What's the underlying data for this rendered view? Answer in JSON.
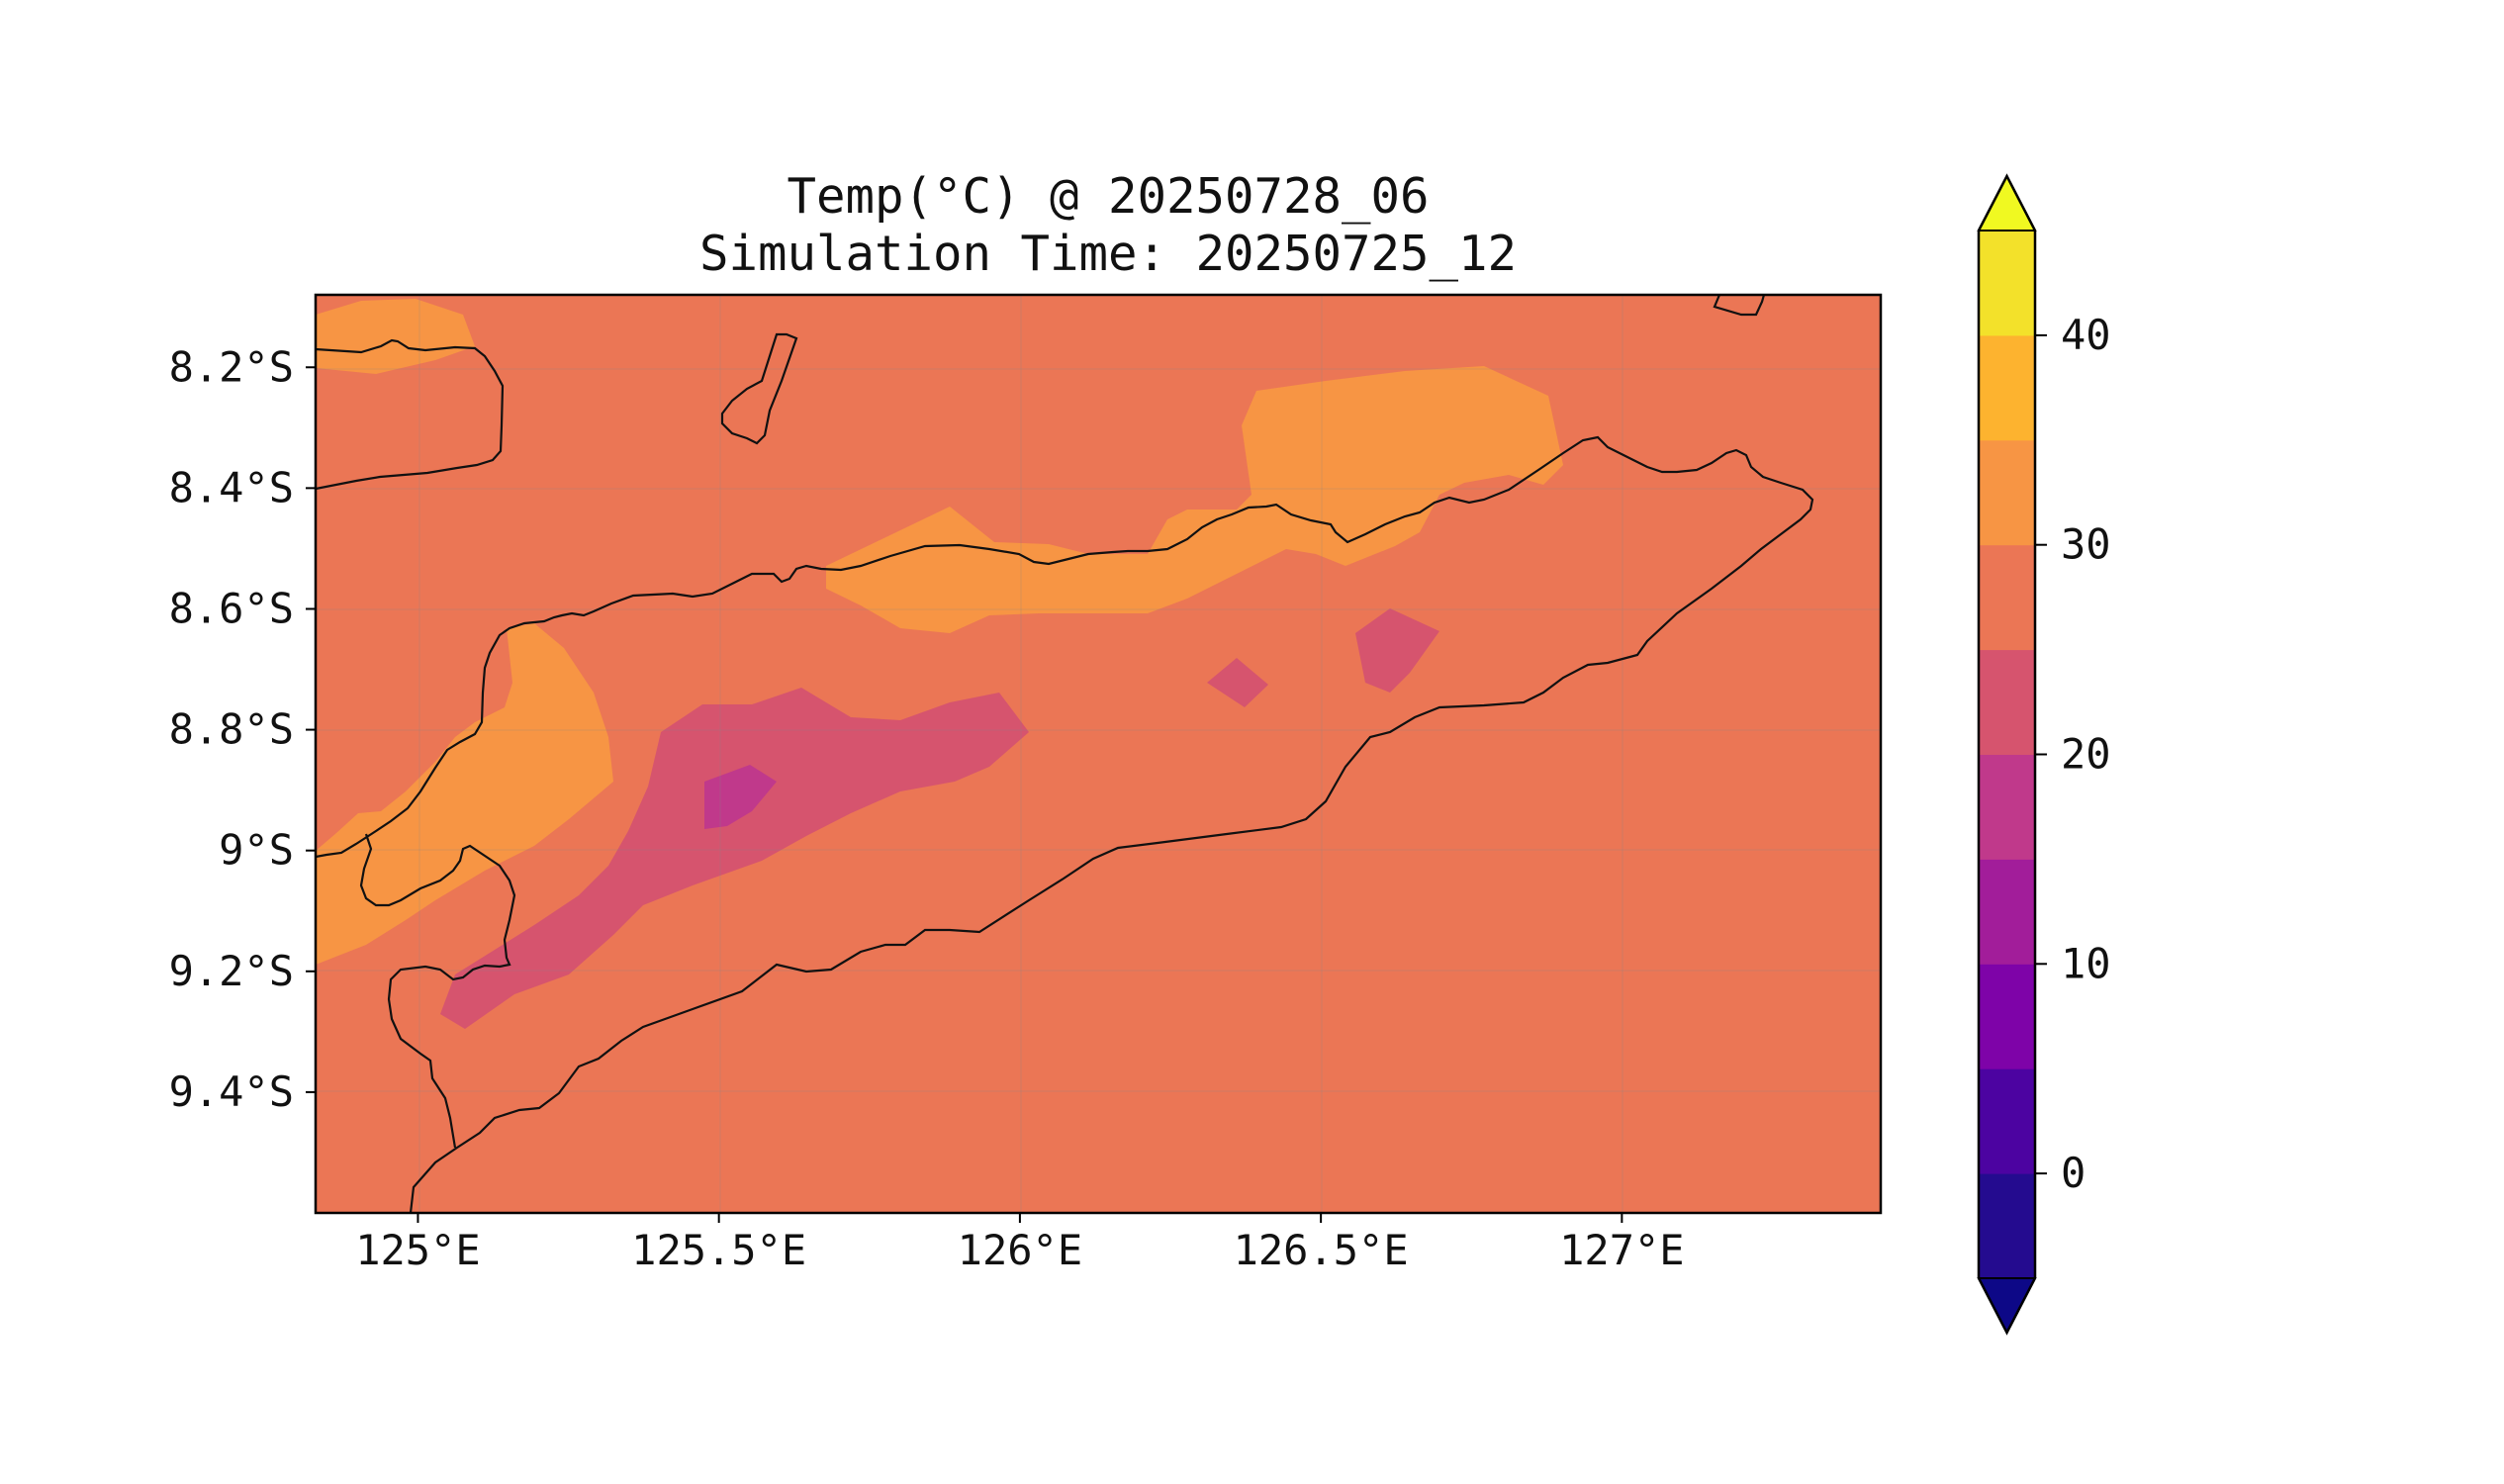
{
  "title": "Temp(°C) @ 20250728_06",
  "subtitle": "Simulation Time: 20250725_12",
  "map": {
    "x_ticks": [
      "125°E",
      "125.5°E",
      "126°E",
      "126.5°E",
      "127°E"
    ],
    "y_ticks": [
      "8.2°S",
      "8.4°S",
      "8.6°S",
      "8.8°S",
      "9°S",
      "9.2°S",
      "9.4°S"
    ]
  },
  "colorbar": {
    "ticks": [
      "0",
      "10",
      "20",
      "30",
      "40"
    ],
    "levels": [
      -5,
      0,
      5,
      10,
      15,
      20,
      25,
      30,
      35,
      40,
      45
    ],
    "colors": [
      "#240b8f",
      "#4c03a1",
      "#7e03a8",
      "#a21d9a",
      "#c0398b",
      "#d6546e",
      "#eb7655",
      "#f79544",
      "#fdb32f",
      "#f3e12a"
    ],
    "under_color": "#0d0887",
    "over_color": "#f0f921"
  },
  "chart_data": {
    "type": "contourf-map",
    "variable": "Temp(°C)",
    "valid_time": "20250728_06",
    "simulation_time": "20250725_12",
    "lon_range": [
      124.83,
      127.43
    ],
    "lat_range": [
      -9.6,
      -8.08
    ],
    "contour_levels": [
      -5,
      0,
      5,
      10,
      15,
      20,
      25,
      30,
      35,
      40,
      45
    ],
    "colormap": "plasma",
    "background_level": "25-30",
    "regions": [
      {
        "level": "30-35",
        "area": "northwest coast near 125°E, 8.1-8.2°S"
      },
      {
        "level": "30-35",
        "area": "north coast 125.6-126.2°E, ~8.5°S"
      },
      {
        "level": "30-35",
        "area": "northeast 126.4-126.9°E, 8.25-8.5°S"
      },
      {
        "level": "30-35",
        "area": "west coast 124.85-125.3°E, 8.6-9.1°S"
      },
      {
        "level": "20-25",
        "area": "central highlands 125.05-126.0°E, 8.75-9.3°S"
      },
      {
        "level": "20-25",
        "area": "small cells near 126.4°E and 126.6°E, ~8.7°S"
      },
      {
        "level": "15-20",
        "area": "core near 125.5°E, 8.9°S"
      }
    ]
  }
}
